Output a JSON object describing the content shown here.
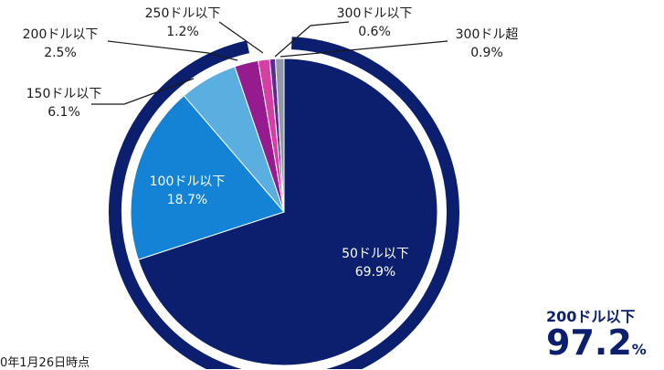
{
  "chart_data": {
    "type": "pie",
    "categories": [
      "50ドル以下",
      "100ドル以下",
      "150ドル以下",
      "200ドル以下",
      "250ドル以下",
      "300ドル以下",
      "300ドル超"
    ],
    "values": [
      69.9,
      18.7,
      6.1,
      2.5,
      1.2,
      0.6,
      0.9
    ],
    "value_labels": [
      "69.9%",
      "18.7%",
      "6.1%",
      "2.5%",
      "1.2%",
      "0.6%",
      "0.9%"
    ],
    "colors": [
      "#0b1f6e",
      "#1483d6",
      "#5aaee0",
      "#951b8f",
      "#d43fa3",
      "#5b2c8e",
      "#8f99a8"
    ],
    "start": "12 o'clock",
    "direction": "clockwise",
    "highlight_ring": {
      "covers_categories": [
        "50ドル以下",
        "100ドル以下",
        "150ドル以下",
        "200ドル以下"
      ],
      "color": "#0b1f6e"
    }
  },
  "cumulative": {
    "label": "200ドル以下",
    "value": "97.2",
    "unit": "%"
  },
  "footnote": "0年1月26日時点"
}
